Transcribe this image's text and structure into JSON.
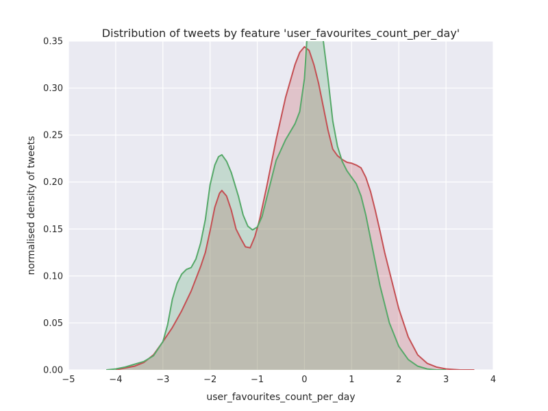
{
  "chart_data": {
    "type": "area",
    "title": "Distribution of tweets by feature 'user_favourites_count_per_day'",
    "xlabel": "user_favourites_count_per_day",
    "ylabel": "normalised density of tweets",
    "xlim": [
      -5,
      4
    ],
    "ylim": [
      0,
      0.35
    ],
    "grid": true,
    "background_color": "#EAEAF2",
    "x_ticks": [
      -5,
      -4,
      -3,
      -2,
      -1,
      0,
      1,
      2,
      3,
      4
    ],
    "x_tick_labels": [
      "−5",
      "−4",
      "−3",
      "−2",
      "−1",
      "0",
      "1",
      "2",
      "3",
      "4"
    ],
    "y_ticks": [
      0.0,
      0.05,
      0.1,
      0.15,
      0.2,
      0.25,
      0.3,
      0.35
    ],
    "y_tick_labels": [
      "0.00",
      "0.05",
      "0.10",
      "0.15",
      "0.20",
      "0.25",
      "0.30",
      "0.35"
    ],
    "series": [
      {
        "color": "#C44E52",
        "fill_color": "rgba(196,78,82,0.25)",
        "points": [
          [
            -4.0,
            0.0
          ],
          [
            -3.8,
            0.002
          ],
          [
            -3.6,
            0.004
          ],
          [
            -3.4,
            0.008
          ],
          [
            -3.2,
            0.016
          ],
          [
            -3.0,
            0.03
          ],
          [
            -2.8,
            0.045
          ],
          [
            -2.6,
            0.063
          ],
          [
            -2.4,
            0.084
          ],
          [
            -2.2,
            0.11
          ],
          [
            -2.1,
            0.125
          ],
          [
            -2.0,
            0.148
          ],
          [
            -1.9,
            0.173
          ],
          [
            -1.8,
            0.188
          ],
          [
            -1.75,
            0.191
          ],
          [
            -1.65,
            0.185
          ],
          [
            -1.55,
            0.17
          ],
          [
            -1.45,
            0.15
          ],
          [
            -1.35,
            0.14
          ],
          [
            -1.25,
            0.131
          ],
          [
            -1.15,
            0.13
          ],
          [
            -1.05,
            0.142
          ],
          [
            -0.95,
            0.16
          ],
          [
            -0.8,
            0.195
          ],
          [
            -0.6,
            0.245
          ],
          [
            -0.4,
            0.29
          ],
          [
            -0.2,
            0.325
          ],
          [
            -0.1,
            0.338
          ],
          [
            0.0,
            0.344
          ],
          [
            0.1,
            0.34
          ],
          [
            0.2,
            0.325
          ],
          [
            0.3,
            0.305
          ],
          [
            0.4,
            0.28
          ],
          [
            0.5,
            0.255
          ],
          [
            0.6,
            0.235
          ],
          [
            0.7,
            0.228
          ],
          [
            0.8,
            0.224
          ],
          [
            0.9,
            0.221
          ],
          [
            1.0,
            0.22
          ],
          [
            1.1,
            0.218
          ],
          [
            1.2,
            0.215
          ],
          [
            1.3,
            0.205
          ],
          [
            1.4,
            0.19
          ],
          [
            1.5,
            0.17
          ],
          [
            1.6,
            0.148
          ],
          [
            1.7,
            0.125
          ],
          [
            1.8,
            0.105
          ],
          [
            2.0,
            0.065
          ],
          [
            2.2,
            0.035
          ],
          [
            2.4,
            0.016
          ],
          [
            2.6,
            0.007
          ],
          [
            2.8,
            0.003
          ],
          [
            3.0,
            0.001
          ],
          [
            3.3,
            0.0
          ],
          [
            3.6,
            0.0
          ]
        ]
      },
      {
        "color": "#55A868",
        "fill_color": "rgba(85,168,104,0.25)",
        "points": [
          [
            -4.2,
            0.0
          ],
          [
            -4.0,
            0.001
          ],
          [
            -3.8,
            0.003
          ],
          [
            -3.6,
            0.006
          ],
          [
            -3.4,
            0.009
          ],
          [
            -3.2,
            0.015
          ],
          [
            -3.0,
            0.03
          ],
          [
            -2.9,
            0.048
          ],
          [
            -2.8,
            0.075
          ],
          [
            -2.7,
            0.092
          ],
          [
            -2.6,
            0.102
          ],
          [
            -2.5,
            0.107
          ],
          [
            -2.4,
            0.109
          ],
          [
            -2.3,
            0.118
          ],
          [
            -2.2,
            0.135
          ],
          [
            -2.1,
            0.16
          ],
          [
            -2.0,
            0.197
          ],
          [
            -1.9,
            0.218
          ],
          [
            -1.82,
            0.227
          ],
          [
            -1.75,
            0.229
          ],
          [
            -1.65,
            0.222
          ],
          [
            -1.55,
            0.21
          ],
          [
            -1.4,
            0.185
          ],
          [
            -1.3,
            0.165
          ],
          [
            -1.2,
            0.153
          ],
          [
            -1.1,
            0.149
          ],
          [
            -1.0,
            0.152
          ],
          [
            -0.9,
            0.163
          ],
          [
            -0.8,
            0.183
          ],
          [
            -0.6,
            0.223
          ],
          [
            -0.4,
            0.245
          ],
          [
            -0.2,
            0.262
          ],
          [
            -0.1,
            0.275
          ],
          [
            0.0,
            0.31
          ],
          [
            0.05,
            0.35
          ],
          [
            0.1,
            0.36
          ],
          [
            0.2,
            0.36
          ],
          [
            0.3,
            0.36
          ],
          [
            0.4,
            0.35
          ],
          [
            0.5,
            0.31
          ],
          [
            0.6,
            0.265
          ],
          [
            0.7,
            0.238
          ],
          [
            0.8,
            0.222
          ],
          [
            0.9,
            0.212
          ],
          [
            1.0,
            0.205
          ],
          [
            1.1,
            0.198
          ],
          [
            1.2,
            0.185
          ],
          [
            1.3,
            0.165
          ],
          [
            1.4,
            0.14
          ],
          [
            1.5,
            0.115
          ],
          [
            1.6,
            0.09
          ],
          [
            1.8,
            0.05
          ],
          [
            2.0,
            0.025
          ],
          [
            2.2,
            0.011
          ],
          [
            2.4,
            0.004
          ],
          [
            2.6,
            0.001
          ],
          [
            2.8,
            0.0
          ],
          [
            3.0,
            0.0
          ]
        ]
      }
    ]
  }
}
